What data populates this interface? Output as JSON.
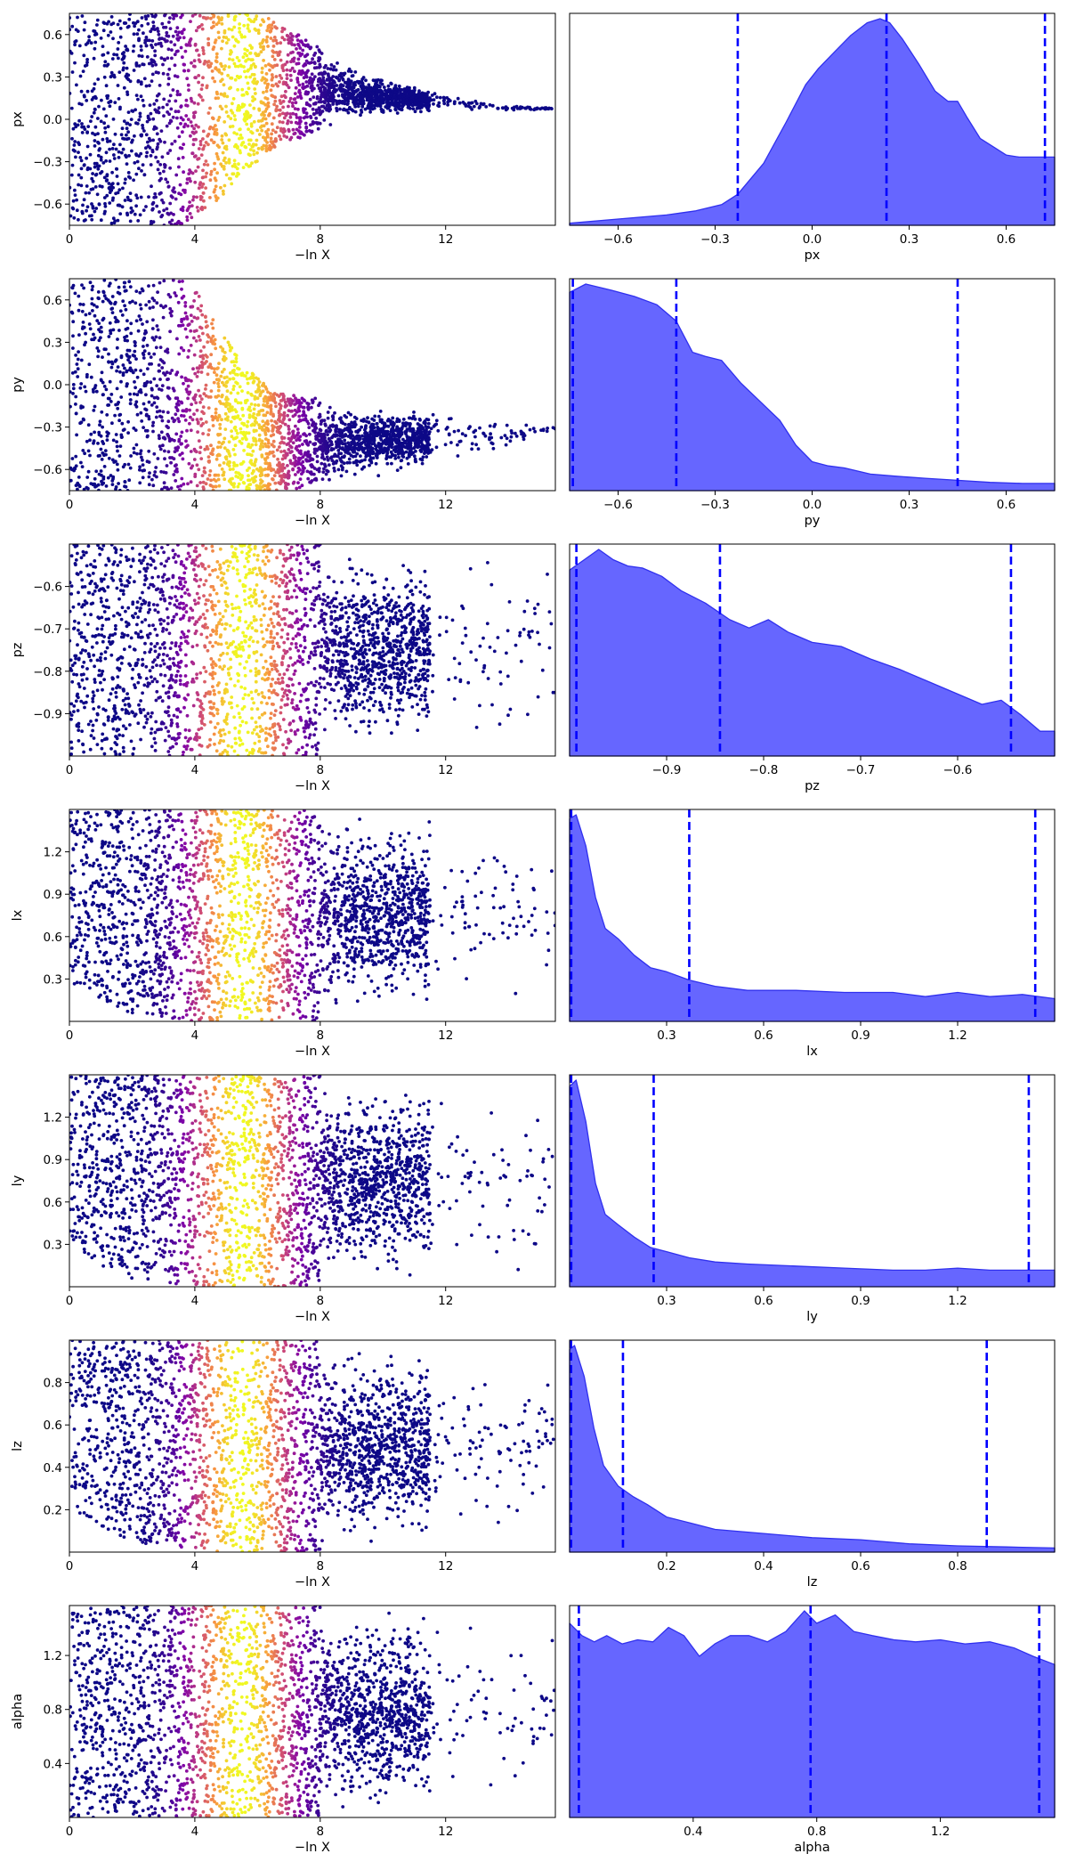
{
  "colors": {
    "posterior_fill": "#6666ff",
    "posterior_line": "#3030ee",
    "quantile_line": "#0000ff",
    "colormap": [
      "#0d0887",
      "#7e03a8",
      "#cc4778",
      "#f89540",
      "#f0f921"
    ]
  },
  "chart_data": [
    {
      "type": "scatter",
      "param": "px",
      "ylabel": "px",
      "xlabel": "−ln X",
      "xlim": [
        0,
        15.5
      ],
      "ylim": [
        -0.75,
        0.75
      ],
      "xticks": [
        0,
        4,
        8,
        12
      ],
      "xtick_labels": [
        "0",
        "4",
        "8",
        "12"
      ],
      "yticks": [
        -0.6,
        -0.3,
        0.0,
        0.3,
        0.6
      ],
      "ytick_labels": [
        "−0.6",
        "−0.3",
        "0.0",
        "0.3",
        "0.6"
      ],
      "colormap": "plasma",
      "peak_x": 5.5,
      "trend": [
        [
          0,
          -0.75,
          0.75
        ],
        [
          3.5,
          -0.75,
          0.75
        ],
        [
          4.5,
          -0.62,
          0.75
        ],
        [
          5.5,
          -0.4,
          0.75
        ],
        [
          6.5,
          -0.2,
          0.72
        ],
        [
          8,
          -0.08,
          0.5
        ],
        [
          10,
          0.02,
          0.3
        ],
        [
          12,
          0.06,
          0.18
        ],
        [
          14,
          0.06,
          0.1
        ],
        [
          15.5,
          0.07,
          0.08
        ]
      ]
    },
    {
      "type": "area",
      "param": "px",
      "xlabel": "px",
      "xlim": [
        -0.75,
        0.75
      ],
      "xticks": [
        -0.6,
        -0.3,
        0.0,
        0.3,
        0.6
      ],
      "xtick_labels": [
        "−0.6",
        "−0.3",
        "0.0",
        "0.3",
        "0.6"
      ],
      "x": [
        -0.75,
        -0.6,
        -0.45,
        -0.36,
        -0.28,
        -0.23,
        -0.15,
        -0.08,
        -0.02,
        0.02,
        0.07,
        0.12,
        0.17,
        0.21,
        0.24,
        0.28,
        0.33,
        0.38,
        0.42,
        0.45,
        0.48,
        0.52,
        0.56,
        0.6,
        0.64,
        0.75
      ],
      "density": [
        0.01,
        0.03,
        0.05,
        0.07,
        0.1,
        0.15,
        0.3,
        0.5,
        0.68,
        0.76,
        0.84,
        0.92,
        0.98,
        1.0,
        0.98,
        0.9,
        0.78,
        0.65,
        0.6,
        0.6,
        0.52,
        0.42,
        0.38,
        0.34,
        0.33,
        0.33
      ],
      "quantiles": [
        -0.23,
        0.23,
        0.72
      ]
    },
    {
      "type": "scatter",
      "param": "py",
      "ylabel": "py",
      "xlabel": "−ln X",
      "xlim": [
        0,
        15.5
      ],
      "ylim": [
        -0.75,
        0.75
      ],
      "xticks": [
        0,
        4,
        8,
        12
      ],
      "xtick_labels": [
        "0",
        "4",
        "8",
        "12"
      ],
      "yticks": [
        -0.6,
        -0.3,
        0.0,
        0.3,
        0.6
      ],
      "ytick_labels": [
        "−0.6",
        "−0.3",
        "0.0",
        "0.3",
        "0.6"
      ],
      "colormap": "plasma",
      "peak_x": 5.5,
      "trend": [
        [
          0,
          -0.75,
          0.75
        ],
        [
          3.8,
          -0.75,
          0.75
        ],
        [
          4.5,
          -0.75,
          0.5
        ],
        [
          5.5,
          -0.75,
          0.15
        ],
        [
          6.5,
          -0.75,
          -0.05
        ],
        [
          8,
          -0.72,
          -0.1
        ],
        [
          10,
          -0.65,
          -0.15
        ],
        [
          12,
          -0.55,
          -0.2
        ],
        [
          14,
          -0.45,
          -0.25
        ],
        [
          15.5,
          -0.32,
          -0.29
        ]
      ]
    },
    {
      "type": "area",
      "param": "py",
      "xlabel": "py",
      "xlim": [
        -0.75,
        0.75
      ],
      "xticks": [
        -0.6,
        -0.3,
        0.0,
        0.3,
        0.6
      ],
      "xtick_labels": [
        "−0.6",
        "−0.3",
        "0.0",
        "0.3",
        "0.6"
      ],
      "x": [
        -0.75,
        -0.7,
        -0.62,
        -0.55,
        -0.48,
        -0.42,
        -0.37,
        -0.33,
        -0.28,
        -0.22,
        -0.16,
        -0.1,
        -0.05,
        0.0,
        0.05,
        0.1,
        0.18,
        0.26,
        0.35,
        0.45,
        0.55,
        0.65,
        0.75
      ],
      "density": [
        0.96,
        1.0,
        0.97,
        0.94,
        0.9,
        0.82,
        0.67,
        0.65,
        0.63,
        0.52,
        0.43,
        0.34,
        0.22,
        0.14,
        0.12,
        0.11,
        0.08,
        0.07,
        0.06,
        0.05,
        0.04,
        0.035,
        0.035
      ],
      "quantiles": [
        -0.74,
        -0.42,
        0.45
      ]
    },
    {
      "type": "scatter",
      "param": "pz",
      "ylabel": "pz",
      "xlabel": "−ln X",
      "xlim": [
        0,
        15.5
      ],
      "ylim": [
        -1.0,
        -0.5
      ],
      "xticks": [
        0,
        4,
        8,
        12
      ],
      "xtick_labels": [
        "0",
        "4",
        "8",
        "12"
      ],
      "yticks": [
        -0.9,
        -0.8,
        -0.7,
        -0.6
      ],
      "ytick_labels": [
        "−0.9",
        "−0.8",
        "−0.7",
        "−0.6"
      ],
      "colormap": "plasma",
      "peak_x": 5.5,
      "trend": [
        [
          0,
          -1.0,
          -0.5
        ],
        [
          15.5,
          -1.0,
          -0.5
        ]
      ]
    },
    {
      "type": "area",
      "param": "pz",
      "xlabel": "pz",
      "xlim": [
        -1.0,
        -0.5
      ],
      "xticks": [
        -0.9,
        -0.8,
        -0.7,
        -0.6
      ],
      "xtick_labels": [
        "−0.9",
        "−0.8",
        "−0.7",
        "−0.6"
      ],
      "x": [
        -1.0,
        -0.985,
        -0.97,
        -0.955,
        -0.94,
        -0.925,
        -0.905,
        -0.885,
        -0.86,
        -0.835,
        -0.815,
        -0.795,
        -0.775,
        -0.75,
        -0.72,
        -0.69,
        -0.66,
        -0.63,
        -0.6,
        -0.575,
        -0.555,
        -0.535,
        -0.515,
        -0.5
      ],
      "density": [
        0.9,
        0.95,
        1.0,
        0.95,
        0.92,
        0.91,
        0.87,
        0.8,
        0.74,
        0.66,
        0.62,
        0.66,
        0.6,
        0.55,
        0.53,
        0.47,
        0.42,
        0.36,
        0.3,
        0.25,
        0.27,
        0.2,
        0.12,
        0.12
      ],
      "quantiles": [
        -0.993,
        -0.845,
        -0.545
      ]
    },
    {
      "type": "scatter",
      "param": "lx",
      "ylabel": "lx",
      "xlabel": "−ln X",
      "xlim": [
        0,
        15.5
      ],
      "ylim": [
        0.0,
        1.5
      ],
      "xticks": [
        0,
        4,
        8,
        12
      ],
      "xtick_labels": [
        "0",
        "4",
        "8",
        "12"
      ],
      "yticks": [
        0.3,
        0.6,
        0.9,
        1.2
      ],
      "ytick_labels": [
        "0.3",
        "0.6",
        "0.9",
        "1.2"
      ],
      "colormap": "plasma",
      "peak_x": 5.5,
      "trend": [
        [
          0,
          0.25,
          1.5
        ],
        [
          2,
          0.05,
          1.5
        ],
        [
          4,
          0.0,
          1.5
        ],
        [
          15.5,
          0.0,
          1.5
        ]
      ]
    },
    {
      "type": "area",
      "param": "lx",
      "xlabel": "lx",
      "xlim": [
        0.0,
        1.5
      ],
      "xticks": [
        0.3,
        0.6,
        0.9,
        1.2
      ],
      "xtick_labels": [
        "0.3",
        "0.6",
        "0.9",
        "1.2"
      ],
      "x": [
        0.0,
        0.02,
        0.05,
        0.08,
        0.11,
        0.15,
        0.2,
        0.25,
        0.3,
        0.37,
        0.45,
        0.55,
        0.7,
        0.85,
        1.0,
        1.1,
        1.2,
        1.3,
        1.4,
        1.5
      ],
      "density": [
        0.98,
        1.0,
        0.85,
        0.6,
        0.45,
        0.4,
        0.32,
        0.26,
        0.24,
        0.2,
        0.17,
        0.15,
        0.15,
        0.14,
        0.14,
        0.12,
        0.14,
        0.12,
        0.13,
        0.11
      ],
      "quantiles": [
        0.005,
        0.37,
        1.44
      ]
    },
    {
      "type": "scatter",
      "param": "ly",
      "ylabel": "ly",
      "xlabel": "−ln X",
      "xlim": [
        0,
        15.5
      ],
      "ylim": [
        0.0,
        1.5
      ],
      "xticks": [
        0,
        4,
        8,
        12
      ],
      "xtick_labels": [
        "0",
        "4",
        "8",
        "12"
      ],
      "yticks": [
        0.3,
        0.6,
        0.9,
        1.2
      ],
      "ytick_labels": [
        "0.3",
        "0.6",
        "0.9",
        "1.2"
      ],
      "colormap": "plasma",
      "peak_x": 5.5,
      "trend": [
        [
          0,
          0.25,
          1.5
        ],
        [
          2,
          0.05,
          1.5
        ],
        [
          4,
          0.0,
          1.5
        ],
        [
          15.5,
          0.0,
          1.5
        ]
      ]
    },
    {
      "type": "area",
      "param": "ly",
      "xlabel": "ly",
      "xlim": [
        0.0,
        1.5
      ],
      "xticks": [
        0.3,
        0.6,
        0.9,
        1.2
      ],
      "xtick_labels": [
        "0.3",
        "0.6",
        "0.9",
        "1.2"
      ],
      "x": [
        0.0,
        0.02,
        0.05,
        0.08,
        0.11,
        0.15,
        0.2,
        0.25,
        0.3,
        0.37,
        0.45,
        0.55,
        0.7,
        0.85,
        1.0,
        1.1,
        1.2,
        1.3,
        1.4,
        1.5
      ],
      "density": [
        0.97,
        1.0,
        0.8,
        0.5,
        0.35,
        0.3,
        0.24,
        0.19,
        0.17,
        0.14,
        0.12,
        0.11,
        0.1,
        0.09,
        0.08,
        0.08,
        0.09,
        0.08,
        0.08,
        0.08
      ],
      "quantiles": [
        0.005,
        0.26,
        1.42
      ]
    },
    {
      "type": "scatter",
      "param": "lz",
      "ylabel": "lz",
      "xlabel": "−ln X",
      "xlim": [
        0,
        15.5
      ],
      "ylim": [
        0.0,
        1.0
      ],
      "xticks": [
        0,
        4,
        8,
        12
      ],
      "xtick_labels": [
        "0",
        "4",
        "8",
        "12"
      ],
      "yticks": [
        0.2,
        0.4,
        0.6,
        0.8
      ],
      "ytick_labels": [
        "0.2",
        "0.4",
        "0.6",
        "0.8"
      ],
      "colormap": "plasma",
      "peak_x": 5.5,
      "trend": [
        [
          0,
          0.2,
          1.0
        ],
        [
          2,
          0.05,
          1.0
        ],
        [
          4,
          0.0,
          1.0
        ],
        [
          15.5,
          0.0,
          1.0
        ]
      ]
    },
    {
      "type": "area",
      "param": "lz",
      "xlabel": "lz",
      "xlim": [
        0.0,
        1.0
      ],
      "xticks": [
        0.2,
        0.4,
        0.6,
        0.8
      ],
      "xtick_labels": [
        "0.2",
        "0.4",
        "0.6",
        "0.8"
      ],
      "x": [
        0.0,
        0.01,
        0.03,
        0.05,
        0.07,
        0.1,
        0.13,
        0.16,
        0.2,
        0.25,
        0.3,
        0.4,
        0.5,
        0.6,
        0.7,
        0.8,
        0.9,
        1.0
      ],
      "density": [
        0.98,
        1.0,
        0.85,
        0.6,
        0.42,
        0.32,
        0.27,
        0.23,
        0.17,
        0.14,
        0.11,
        0.09,
        0.07,
        0.06,
        0.04,
        0.03,
        0.025,
        0.02
      ],
      "quantiles": [
        0.003,
        0.11,
        0.86
      ]
    },
    {
      "type": "scatter",
      "param": "alpha",
      "ylabel": "alpha",
      "xlabel": "−ln X",
      "xlim": [
        0,
        15.5
      ],
      "ylim": [
        0.0,
        1.57
      ],
      "xticks": [
        0,
        4,
        8,
        12
      ],
      "xtick_labels": [
        "0",
        "4",
        "8",
        "12"
      ],
      "yticks": [
        0.4,
        0.8,
        1.2
      ],
      "ytick_labels": [
        "0.4",
        "0.8",
        "1.2"
      ],
      "colormap": "plasma",
      "peak_x": 5.5,
      "trend": [
        [
          0,
          0.0,
          1.57
        ],
        [
          15.5,
          0.0,
          1.57
        ]
      ]
    },
    {
      "type": "area",
      "param": "alpha",
      "xlabel": "alpha",
      "xlim": [
        0.0,
        1.57
      ],
      "xticks": [
        0.4,
        0.8,
        1.2
      ],
      "xtick_labels": [
        "0.4",
        "0.8",
        "1.2"
      ],
      "x": [
        0.0,
        0.04,
        0.08,
        0.12,
        0.17,
        0.22,
        0.27,
        0.32,
        0.37,
        0.42,
        0.47,
        0.52,
        0.58,
        0.64,
        0.7,
        0.76,
        0.8,
        0.86,
        0.92,
        0.98,
        1.05,
        1.12,
        1.2,
        1.28,
        1.36,
        1.44,
        1.5,
        1.57
      ],
      "density": [
        0.94,
        0.88,
        0.85,
        0.88,
        0.84,
        0.86,
        0.85,
        0.92,
        0.88,
        0.78,
        0.84,
        0.88,
        0.88,
        0.85,
        0.9,
        1.0,
        0.94,
        0.98,
        0.9,
        0.88,
        0.86,
        0.85,
        0.86,
        0.84,
        0.85,
        0.82,
        0.78,
        0.74
      ],
      "quantiles": [
        0.03,
        0.78,
        1.52
      ]
    }
  ]
}
